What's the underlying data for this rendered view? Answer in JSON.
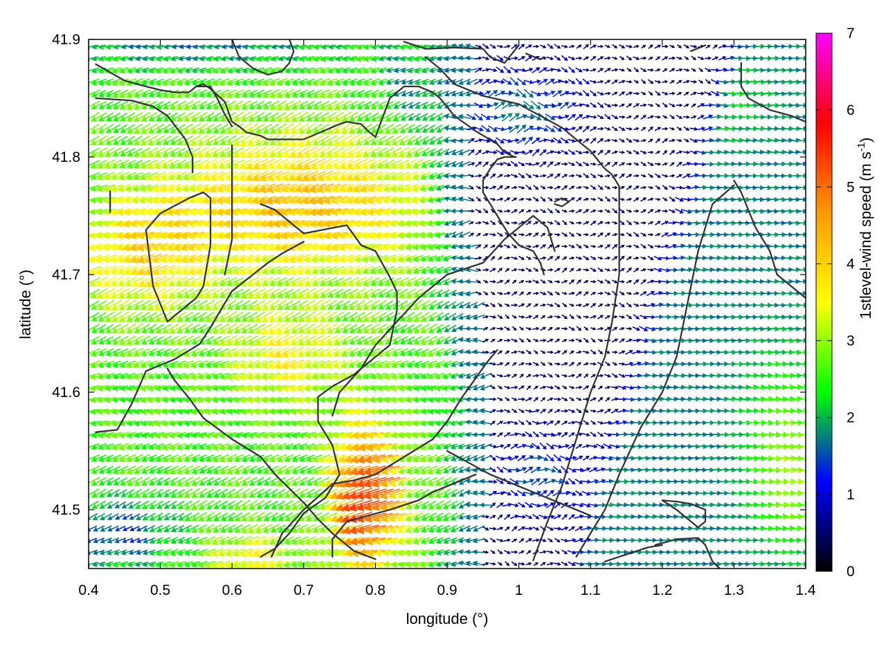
{
  "chart_data": {
    "type": "vector-field",
    "xlabel": "longitude (°)",
    "ylabel": "latitude (°)",
    "colorbar_label": "1stlevel-wind speed (m s-1)",
    "colorbar_label_main": "1stlevel-wind speed (m s",
    "colorbar_label_sup": "-1",
    "colorbar_label_close": ")",
    "xlim": [
      0.4,
      1.4
    ],
    "ylim": [
      41.45,
      41.9
    ],
    "clim": [
      0,
      7
    ],
    "x_ticks": [
      "0.4",
      "0.5",
      "0.6",
      "0.7",
      "0.8",
      "0.9",
      "1",
      "1.1",
      "1.2",
      "1.3",
      "1.4"
    ],
    "x_tick_values": [
      0.4,
      0.5,
      0.6,
      0.7,
      0.8,
      0.9,
      1.0,
      1.1,
      1.2,
      1.3,
      1.4
    ],
    "y_ticks": [
      "41.5",
      "41.6",
      "41.7",
      "41.8",
      "41.9"
    ],
    "y_tick_values": [
      41.5,
      41.6,
      41.7,
      41.8,
      41.9
    ],
    "colorbar_ticks": [
      "0",
      "1",
      "2",
      "3",
      "4",
      "5",
      "6",
      "7"
    ],
    "colorbar_tick_values": [
      0,
      1,
      2,
      3,
      4,
      5,
      6,
      7
    ],
    "colormap": [
      "#000000",
      "#0000ff",
      "#00ff00",
      "#ffff00",
      "#ff9900",
      "#ff0000",
      "#ff00ff"
    ],
    "grid": true,
    "legend": "colorbar-right",
    "vector_grid_step_deg": [
      0.01,
      0.01
    ],
    "wind_regions": [
      {
        "name": "west-plain",
        "speed_ms": 2.6,
        "direction": "toward west-southwest"
      },
      {
        "name": "west-orange-band",
        "speed_ms": 4.2,
        "direction": "toward west-southwest"
      },
      {
        "name": "central-max",
        "speed_ms": 5.6,
        "lon": 0.79,
        "lat": 41.51,
        "direction": "toward west"
      },
      {
        "name": "valley-calm",
        "speed_ms": 0.6,
        "direction": "variable"
      },
      {
        "name": "east-flow",
        "speed_ms": 1.6,
        "direction": "toward east"
      }
    ],
    "contours": [
      [
        [
          0.41,
          41.85
        ],
        [
          0.46,
          41.848
        ],
        [
          0.49,
          41.843
        ],
        [
          0.51,
          41.835
        ],
        [
          0.535,
          41.815
        ],
        [
          0.545,
          41.8
        ],
        [
          0.545,
          41.787
        ]
      ],
      [
        [
          0.41,
          41.879
        ],
        [
          0.45,
          41.865
        ],
        [
          0.48,
          41.86
        ],
        [
          0.5,
          41.857
        ],
        [
          0.52,
          41.855
        ],
        [
          0.54,
          41.855
        ],
        [
          0.55,
          41.86
        ],
        [
          0.56,
          41.862
        ],
        [
          0.57,
          41.858
        ],
        [
          0.59,
          41.847
        ],
        [
          0.6,
          41.83
        ],
        [
          0.61,
          41.826
        ],
        [
          0.62,
          41.821
        ],
        [
          0.64,
          41.818
        ],
        [
          0.65,
          41.815
        ],
        [
          0.7,
          41.815
        ],
        [
          0.75,
          41.828
        ],
        [
          0.76,
          41.83
        ],
        [
          0.78,
          41.828
        ],
        [
          0.79,
          41.822
        ],
        [
          0.8,
          41.817
        ],
        [
          0.82,
          41.85
        ],
        [
          0.84,
          41.86
        ],
        [
          0.86,
          41.86
        ],
        [
          0.88,
          41.855
        ],
        [
          0.89,
          41.85
        ],
        [
          0.91,
          41.835
        ],
        [
          0.94,
          41.822
        ],
        [
          0.97,
          41.811
        ],
        [
          0.98,
          41.804
        ],
        [
          0.994,
          41.8
        ]
      ],
      [
        [
          0.552,
          41.86
        ],
        [
          0.56,
          41.86
        ],
        [
          0.57,
          41.86
        ],
        [
          0.58,
          41.849
        ],
        [
          0.59,
          41.836
        ],
        [
          0.6,
          41.826
        ]
      ],
      [
        [
          0.6,
          41.9
        ],
        [
          0.61,
          41.885
        ],
        [
          0.63,
          41.875
        ],
        [
          0.65,
          41.87
        ],
        [
          0.67,
          41.873
        ],
        [
          0.68,
          41.88
        ],
        [
          0.686,
          41.89
        ],
        [
          0.68,
          41.9
        ]
      ],
      [
        [
          0.84,
          41.898
        ],
        [
          0.87,
          41.892
        ],
        [
          0.91,
          41.893
        ],
        [
          0.95,
          41.892
        ],
        [
          0.96,
          41.885
        ],
        [
          0.98,
          41.88
        ],
        [
          1.0,
          41.895
        ]
      ],
      [
        [
          1.01,
          41.888
        ],
        [
          1.03,
          41.883
        ],
        [
          1.035,
          41.885
        ]
      ],
      [
        [
          0.996,
          41.8
        ],
        [
          0.99,
          41.8
        ],
        [
          0.98,
          41.8
        ],
        [
          0.97,
          41.798
        ],
        [
          0.96,
          41.79
        ],
        [
          0.95,
          41.78
        ],
        [
          0.95,
          41.77
        ],
        [
          0.96,
          41.76
        ],
        [
          0.975,
          41.745
        ],
        [
          0.985,
          41.735
        ],
        [
          1.0,
          41.725
        ],
        [
          1.02,
          41.72
        ],
        [
          1.03,
          41.71
        ],
        [
          1.035,
          41.7
        ]
      ],
      [
        [
          0.43,
          41.771
        ],
        [
          0.43,
          41.762
        ],
        [
          0.43,
          41.753
        ]
      ],
      [
        [
          0.7,
          41.728
        ],
        [
          0.67,
          41.718
        ],
        [
          0.65,
          41.71
        ],
        [
          0.6,
          41.686
        ],
        [
          0.57,
          41.655
        ],
        [
          0.555,
          41.641
        ],
        [
          0.52,
          41.628
        ],
        [
          0.48,
          41.618
        ],
        [
          0.46,
          41.59
        ],
        [
          0.44,
          41.568
        ],
        [
          0.41,
          41.566
        ]
      ],
      [
        [
          0.51,
          41.66
        ],
        [
          0.49,
          41.69
        ],
        [
          0.48,
          41.738
        ],
        [
          0.5,
          41.752
        ],
        [
          0.54,
          41.765
        ],
        [
          0.56,
          41.77
        ],
        [
          0.57,
          41.765
        ],
        [
          0.57,
          41.725
        ],
        [
          0.56,
          41.69
        ],
        [
          0.55,
          41.68
        ],
        [
          0.52,
          41.665
        ],
        [
          0.51,
          41.66
        ]
      ],
      [
        [
          0.6,
          41.81
        ],
        [
          0.6,
          41.77
        ],
        [
          0.6,
          41.73
        ],
        [
          0.59,
          41.7
        ]
      ],
      [
        [
          0.64,
          41.76
        ],
        [
          0.66,
          41.755
        ],
        [
          0.7,
          41.735
        ],
        [
          0.76,
          41.742
        ],
        [
          0.78,
          41.725
        ],
        [
          0.8,
          41.72
        ],
        [
          0.82,
          41.698
        ],
        [
          0.83,
          41.685
        ],
        [
          0.83,
          41.67
        ],
        [
          0.82,
          41.64
        ],
        [
          0.8,
          41.63
        ],
        [
          0.77,
          41.615
        ],
        [
          0.74,
          41.605
        ],
        [
          0.72,
          41.596
        ],
        [
          0.72,
          41.575
        ],
        [
          0.74,
          41.555
        ],
        [
          0.75,
          41.53
        ],
        [
          0.73,
          41.51
        ],
        [
          0.7,
          41.497
        ],
        [
          0.68,
          41.48
        ],
        [
          0.66,
          41.467
        ],
        [
          0.64,
          41.46
        ]
      ],
      [
        [
          0.51,
          41.62
        ],
        [
          0.52,
          41.61
        ],
        [
          0.54,
          41.595
        ],
        [
          0.56,
          41.578
        ],
        [
          0.6,
          41.56
        ],
        [
          0.64,
          41.545
        ],
        [
          0.66,
          41.53
        ],
        [
          0.7,
          41.506
        ],
        [
          0.72,
          41.492
        ],
        [
          0.74,
          41.48
        ],
        [
          0.77,
          41.465
        ],
        [
          0.8,
          41.458
        ]
      ],
      [
        [
          0.655,
          41.46
        ],
        [
          0.67,
          41.48
        ],
        [
          0.7,
          41.5
        ],
        [
          0.74,
          41.522
        ],
        [
          0.77,
          41.525
        ],
        [
          0.8,
          41.53
        ],
        [
          0.84,
          41.545
        ],
        [
          0.88,
          41.56
        ],
        [
          0.9,
          41.575
        ],
        [
          0.92,
          41.595
        ],
        [
          0.94,
          41.612
        ],
        [
          0.955,
          41.625
        ],
        [
          0.97,
          41.636
        ]
      ],
      [
        [
          0.74,
          41.46
        ],
        [
          0.74,
          41.475
        ],
        [
          0.76,
          41.49
        ],
        [
          0.79,
          41.495
        ],
        [
          0.82,
          41.5
        ],
        [
          0.86,
          41.508
        ],
        [
          0.88,
          41.515
        ],
        [
          0.9,
          41.52
        ],
        [
          0.94,
          41.53
        ]
      ],
      [
        [
          0.74,
          41.58
        ],
        [
          0.75,
          41.6
        ],
        [
          0.78,
          41.62
        ],
        [
          0.8,
          41.64
        ],
        [
          0.83,
          41.66
        ],
        [
          0.86,
          41.68
        ],
        [
          0.9,
          41.7
        ],
        [
          0.95,
          41.71
        ],
        [
          0.98,
          41.73
        ],
        [
          1.0,
          41.74
        ],
        [
          1.02,
          41.75
        ],
        [
          1.04,
          41.74
        ],
        [
          1.05,
          41.72
        ]
      ],
      [
        [
          0.9,
          41.55
        ],
        [
          0.93,
          41.54
        ],
        [
          0.96,
          41.53
        ],
        [
          1.0,
          41.52
        ],
        [
          1.04,
          41.51
        ],
        [
          1.08,
          41.5
        ],
        [
          1.1,
          41.495
        ]
      ],
      [
        [
          1.02,
          41.457
        ],
        [
          1.04,
          41.49
        ],
        [
          1.06,
          41.52
        ],
        [
          1.08,
          41.56
        ],
        [
          1.1,
          41.6
        ],
        [
          1.12,
          41.63
        ],
        [
          1.13,
          41.66
        ],
        [
          1.14,
          41.7
        ],
        [
          1.14,
          41.75
        ],
        [
          1.14,
          41.775
        ],
        [
          1.13,
          41.785
        ],
        [
          1.12,
          41.79
        ],
        [
          1.1,
          41.805
        ],
        [
          1.08,
          41.815
        ],
        [
          1.06,
          41.825
        ],
        [
          1.03,
          41.835
        ],
        [
          1.0,
          41.845
        ],
        [
          0.95,
          41.852
        ],
        [
          0.91,
          41.862
        ],
        [
          0.89,
          41.875
        ],
        [
          0.87,
          41.885
        ]
      ],
      [
        [
          1.3,
          41.776
        ],
        [
          1.27,
          41.76
        ],
        [
          1.25,
          41.72
        ],
        [
          1.24,
          41.69
        ],
        [
          1.23,
          41.66
        ],
        [
          1.22,
          41.63
        ],
        [
          1.2,
          41.6
        ],
        [
          1.17,
          41.57
        ],
        [
          1.14,
          41.53
        ],
        [
          1.12,
          41.5
        ],
        [
          1.1,
          41.48
        ],
        [
          1.08,
          41.46
        ]
      ],
      [
        [
          1.3,
          41.78
        ],
        [
          1.31,
          41.77
        ],
        [
          1.33,
          41.74
        ],
        [
          1.35,
          41.72
        ],
        [
          1.36,
          41.7
        ],
        [
          1.38,
          41.69
        ],
        [
          1.4,
          41.68
        ]
      ],
      [
        [
          1.2,
          41.508
        ],
        [
          1.22,
          41.507
        ],
        [
          1.24,
          41.505
        ],
        [
          1.26,
          41.5
        ],
        [
          1.26,
          41.49
        ],
        [
          1.25,
          41.485
        ],
        [
          1.24,
          41.49
        ],
        [
          1.22,
          41.5
        ],
        [
          1.2,
          41.508
        ]
      ],
      [
        [
          1.19,
          41.47
        ],
        [
          1.22,
          41.475
        ],
        [
          1.25,
          41.476
        ],
        [
          1.26,
          41.47
        ],
        [
          1.27,
          41.456
        ],
        [
          1.28,
          41.45
        ]
      ],
      [
        [
          1.12,
          41.456
        ],
        [
          1.15,
          41.462
        ],
        [
          1.18,
          41.468
        ],
        [
          1.2,
          41.47
        ]
      ],
      [
        [
          1.05,
          41.76
        ],
        [
          1.06,
          41.758
        ],
        [
          1.07,
          41.762
        ],
        [
          1.06,
          41.765
        ],
        [
          1.05,
          41.762
        ]
      ],
      [
        [
          1.31,
          41.88
        ],
        [
          1.31,
          41.86
        ],
        [
          1.32,
          41.85
        ],
        [
          1.35,
          41.84
        ],
        [
          1.38,
          41.835
        ],
        [
          1.4,
          41.83
        ]
      ],
      [
        [
          1.24,
          41.89
        ],
        [
          1.26,
          41.895
        ]
      ]
    ]
  }
}
